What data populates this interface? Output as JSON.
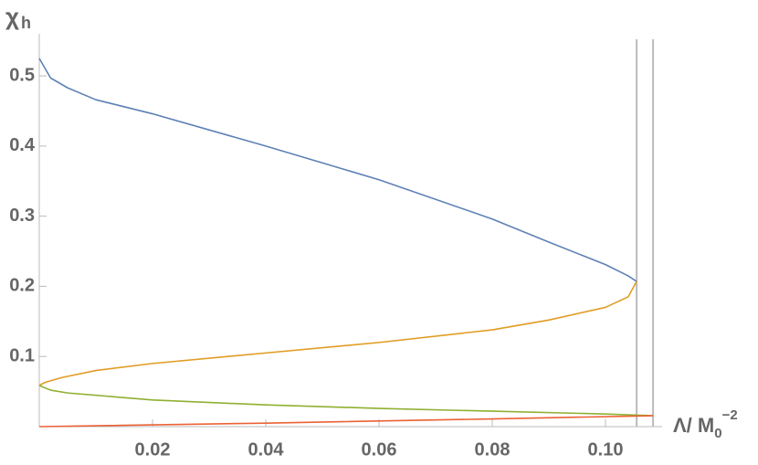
{
  "chart_data": {
    "type": "line",
    "x_label": {
      "text": "Λ/ M",
      "subscript": "0",
      "superscript": "−2"
    },
    "y_label": {
      "text": "χ",
      "subscript": "h"
    },
    "xlim": [
      0,
      0.11
    ],
    "ylim": [
      0,
      0.56
    ],
    "xticks": [
      0.02,
      0.04,
      0.06,
      0.08,
      {
        "value": 0.1,
        "label": "0.10"
      }
    ],
    "yticks": [
      0.1,
      0.2,
      0.3,
      0.4,
      0.5
    ],
    "vertical_lines": [
      0.1055,
      0.1084
    ],
    "vertical_line_color": "#bbbbbb",
    "series": [
      {
        "color": "#5e81b5",
        "x": [
          0,
          0.002,
          0.005,
          0.01,
          0.02,
          0.04,
          0.06,
          0.08,
          0.09,
          0.1,
          0.104,
          0.1055
        ],
        "values": [
          0.525,
          0.497,
          0.483,
          0.466,
          0.446,
          0.4,
          0.352,
          0.296,
          0.263,
          0.231,
          0.215,
          0.207
        ]
      },
      {
        "color": "#e19c24",
        "x": [
          0.1055,
          0.104,
          0.1,
          0.09,
          0.08,
          0.06,
          0.04,
          0.02,
          0.01,
          0.004,
          0.001,
          0
        ],
        "values": [
          0.207,
          0.185,
          0.17,
          0.152,
          0.138,
          0.12,
          0.105,
          0.09,
          0.08,
          0.07,
          0.063,
          0.0586
        ]
      },
      {
        "color": "#8fb032",
        "x": [
          0,
          0.002,
          0.005,
          0.02,
          0.04,
          0.06,
          0.08,
          0.1,
          0.1084
        ],
        "values": [
          0.0586,
          0.052,
          0.048,
          0.038,
          0.031,
          0.026,
          0.022,
          0.018,
          0.0156
        ]
      },
      {
        "color": "#eb6235",
        "x": [
          0.1084,
          0.08,
          0.04,
          0
        ],
        "values": [
          0.0156,
          0.011,
          0.005,
          0
        ]
      }
    ]
  }
}
